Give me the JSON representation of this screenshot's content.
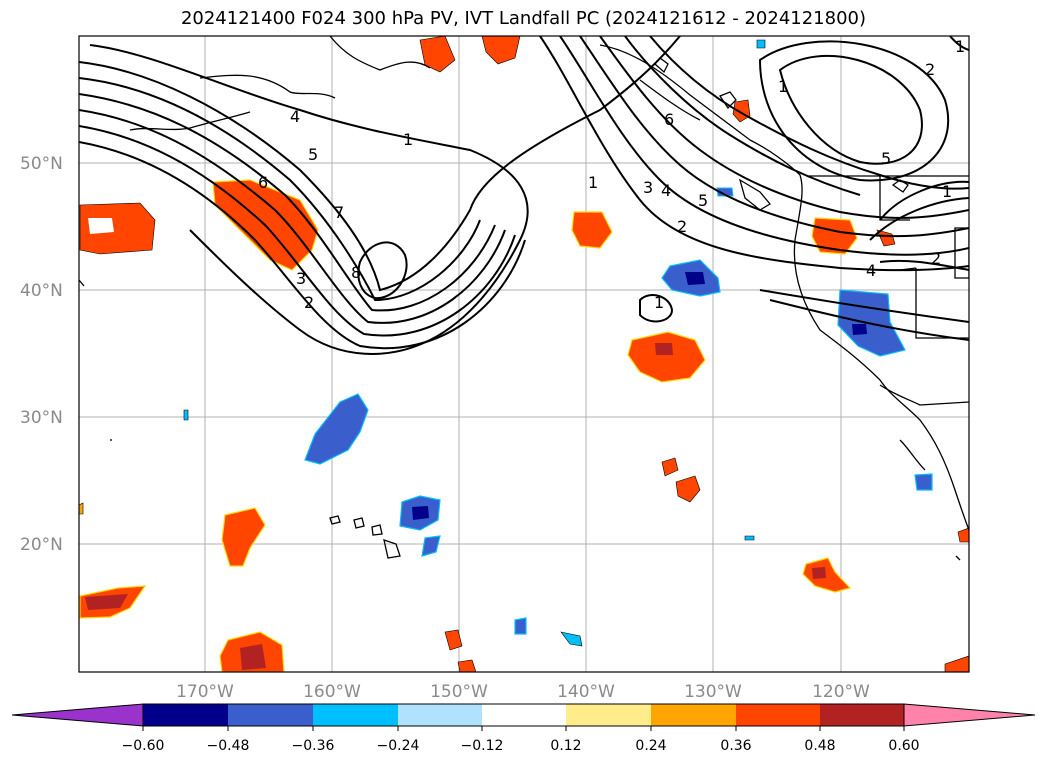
{
  "title": "2024121400 F024 300 hPa PV, IVT Landfall PC (2024121612 - 2024121800)",
  "map": {
    "lat_labels": [
      "50°N",
      "40°N",
      "30°N",
      "20°N"
    ],
    "lon_labels": [
      "170°W",
      "160°W",
      "150°W",
      "140°W",
      "130°W",
      "120°W"
    ],
    "grid": true
  },
  "contours": {
    "labels": [
      "1",
      "4",
      "5",
      "6",
      "7",
      "8",
      "3",
      "2",
      "1",
      "3",
      "4",
      "5",
      "2",
      "1",
      "6",
      "2",
      "5",
      "1",
      "2",
      "1",
      "1",
      "4"
    ]
  },
  "colorbar": {
    "colors": [
      "#9933cc",
      "#00008b",
      "#3a5fcd",
      "#00bfff",
      "#b0e2ff",
      "#ffffff",
      "#ffec8b",
      "#ffa500",
      "#ff4500",
      "#b22222",
      "#ff82ab"
    ],
    "ticks": [
      "−0.60",
      "−0.48",
      "−0.36",
      "−0.24",
      "−0.12",
      "0.12",
      "0.24",
      "0.36",
      "0.48",
      "0.60"
    ]
  }
}
